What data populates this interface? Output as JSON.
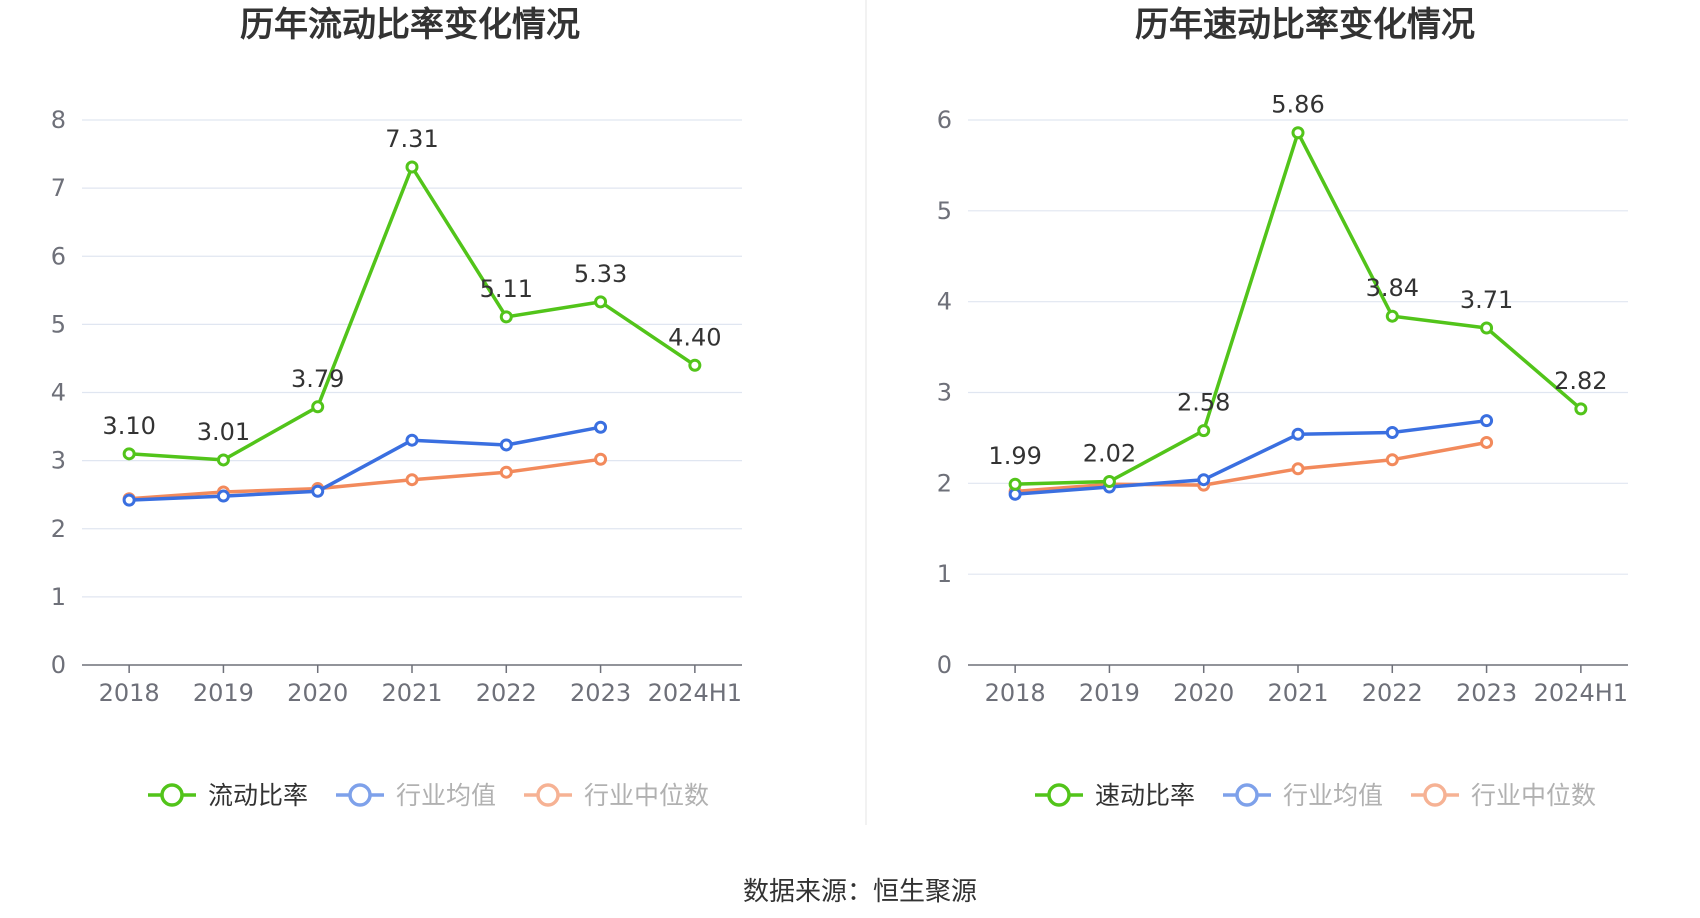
{
  "colors": {
    "primary": "#52c41a",
    "average": "#3a6fe0",
    "median": "#f28a5c",
    "grid": "#e0e6f1",
    "axis": "#6e7079",
    "divider": "#eeeeee"
  },
  "chart_data": [
    {
      "type": "line",
      "title": "历年流动比率变化情况",
      "categories": [
        "2018",
        "2019",
        "2020",
        "2021",
        "2022",
        "2023",
        "2024H1"
      ],
      "ylim": [
        0,
        8
      ],
      "yticks": [
        0,
        1,
        2,
        3,
        4,
        5,
        6,
        7,
        8
      ],
      "grid": true,
      "legend_position": "bottom",
      "series": [
        {
          "name": "流动比率",
          "color_key": "primary",
          "labels": true,
          "values": [
            3.1,
            3.01,
            3.79,
            7.31,
            5.11,
            5.33,
            4.4
          ]
        },
        {
          "name": "行业均值",
          "color_key": "average",
          "labels": false,
          "values": [
            2.42,
            2.48,
            2.55,
            3.3,
            3.23,
            3.49,
            null
          ]
        },
        {
          "name": "行业中位数",
          "color_key": "median",
          "labels": false,
          "values": [
            2.44,
            2.54,
            2.59,
            2.72,
            2.83,
            3.02,
            null
          ]
        }
      ]
    },
    {
      "type": "line",
      "title": "历年速动比率变化情况",
      "categories": [
        "2018",
        "2019",
        "2020",
        "2021",
        "2022",
        "2023",
        "2024H1"
      ],
      "ylim": [
        0,
        6
      ],
      "yticks": [
        0,
        1,
        2,
        3,
        4,
        5,
        6
      ],
      "grid": true,
      "legend_position": "bottom",
      "series": [
        {
          "name": "速动比率",
          "color_key": "primary",
          "labels": true,
          "values": [
            1.99,
            2.02,
            2.58,
            5.86,
            3.84,
            3.71,
            2.82
          ]
        },
        {
          "name": "行业均值",
          "color_key": "average",
          "labels": false,
          "values": [
            1.88,
            1.96,
            2.04,
            2.54,
            2.56,
            2.69,
            null
          ]
        },
        {
          "name": "行业中位数",
          "color_key": "median",
          "labels": false,
          "values": [
            1.91,
            1.99,
            1.98,
            2.16,
            2.26,
            2.45,
            null
          ]
        }
      ]
    }
  ],
  "footer": {
    "source": "数据来源：恒生聚源"
  }
}
